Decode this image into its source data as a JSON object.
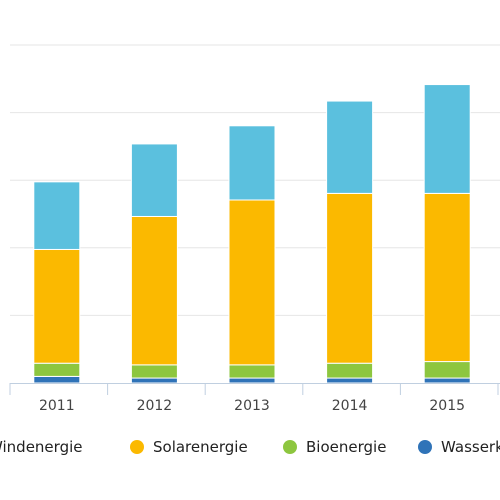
{
  "chart_data": {
    "type": "bar",
    "stacked": true,
    "categories": [
      "2011",
      "2012",
      "2013",
      "2014",
      "2015"
    ],
    "series": [
      {
        "name": "Wasserkraft",
        "color": "#2f73b8",
        "values": [
          4,
          3,
          3,
          3,
          3
        ]
      },
      {
        "name": "Bioenergie",
        "color": "#8dc63f",
        "values": [
          8,
          8,
          8,
          9,
          10
        ]
      },
      {
        "name": "Solarenergie",
        "color": "#fbb900",
        "values": [
          69,
          90,
          100,
          103,
          102
        ]
      },
      {
        "name": "Windenergie",
        "color": "#5bc0de",
        "values": [
          41,
          44,
          45,
          56,
          66
        ]
      }
    ],
    "ylim": [
      0,
      205
    ],
    "grid": true,
    "legend_position": "bottom"
  },
  "legend": {
    "items": [
      {
        "label": "Windenergie",
        "color": "#5bc0de"
      },
      {
        "label": "Solarenergie",
        "color": "#fbb900"
      },
      {
        "label": "Bioenergie",
        "color": "#8dc63f"
      },
      {
        "label": "Wasserkraft",
        "color": "#2f73b8"
      }
    ]
  }
}
